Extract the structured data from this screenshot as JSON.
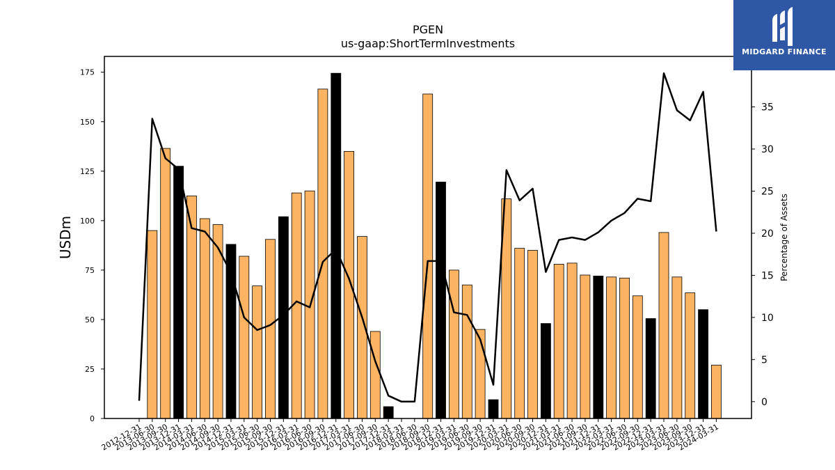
{
  "brand": {
    "name": "MIDGARD FINANCE",
    "bg_color": "#2e58a6"
  },
  "chart_data": {
    "type": "bar",
    "title": "PGEN",
    "subtitle": "us-gaap:ShortTermInvestments",
    "ylabel": "USDm",
    "y2label": "Percentage of Assets",
    "ylim": [
      0,
      183
    ],
    "y2lim": [
      -2,
      41
    ],
    "yticks": [
      0,
      25,
      50,
      75,
      100,
      125,
      150,
      175
    ],
    "y2ticks": [
      0,
      5,
      10,
      15,
      20,
      25,
      30,
      35
    ],
    "grid": false,
    "colors": {
      "bar_default": "#fdb462",
      "bar_q4": "#000000",
      "line": "#000000"
    },
    "categories": [
      "2012-12-31",
      "2013-06-30",
      "2013-09-30",
      "2013-12-31",
      "2014-03-31",
      "2014-06-30",
      "2014-09-30",
      "2014-12-31",
      "2015-03-31",
      "2015-06-30",
      "2015-09-30",
      "2015-12-31",
      "2016-03-31",
      "2016-06-30",
      "2016-09-30",
      "2016-12-31",
      "2017-03-31",
      "2017-06-30",
      "2017-09-30",
      "2017-12-31",
      "2018-03-31",
      "2018-06-30",
      "2018-09-30",
      "2018-12-31",
      "2019-03-31",
      "2019-06-30",
      "2019-09-30",
      "2019-12-31",
      "2020-03-31",
      "2020-06-30",
      "2020-09-30",
      "2020-12-31",
      "2021-03-31",
      "2021-06-30",
      "2021-09-30",
      "2021-12-31",
      "2022-03-31",
      "2022-06-30",
      "2022-09-30",
      "2022-12-31",
      "2023-03-31",
      "2023-06-30",
      "2023-09-30",
      "2023-12-31",
      "2024-03-31"
    ],
    "series": [
      {
        "kind": "bar",
        "values": [
          0,
          95,
          136.5,
          127.5,
          112.5,
          101,
          98,
          88,
          82,
          67,
          90.5,
          102,
          114,
          115,
          166.5,
          174.5,
          135,
          92,
          44,
          6,
          0,
          0,
          164,
          119.5,
          75,
          67.5,
          45,
          9.5,
          111,
          86,
          85,
          48,
          78,
          78.5,
          72.5,
          72,
          71.5,
          71,
          62,
          50.5,
          94,
          71.5,
          63.5,
          55,
          27
        ],
        "highlight": [
          false,
          false,
          false,
          true,
          false,
          false,
          false,
          true,
          false,
          false,
          false,
          true,
          false,
          false,
          false,
          true,
          false,
          false,
          false,
          true,
          false,
          false,
          false,
          true,
          false,
          false,
          false,
          true,
          false,
          false,
          false,
          true,
          false,
          false,
          false,
          true,
          false,
          false,
          false,
          true,
          false,
          false,
          false,
          true,
          false
        ]
      },
      {
        "kind": "line",
        "axis": "right",
        "values": [
          0.1,
          33.6,
          28.9,
          27.6,
          20.6,
          20.2,
          18.3,
          15.3,
          10.0,
          8.5,
          9.1,
          10.3,
          11.9,
          11.2,
          16.6,
          18.1,
          14.6,
          10.0,
          4.8,
          0.7,
          0.0,
          0.0,
          16.7,
          16.7,
          10.6,
          10.3,
          7.4,
          2.0,
          27.5,
          23.9,
          25.3,
          15.4,
          19.2,
          19.5,
          19.2,
          20.1,
          21.5,
          22.4,
          24.1,
          23.8,
          39.0,
          34.6,
          33.4,
          36.8,
          20.2
        ]
      }
    ]
  }
}
